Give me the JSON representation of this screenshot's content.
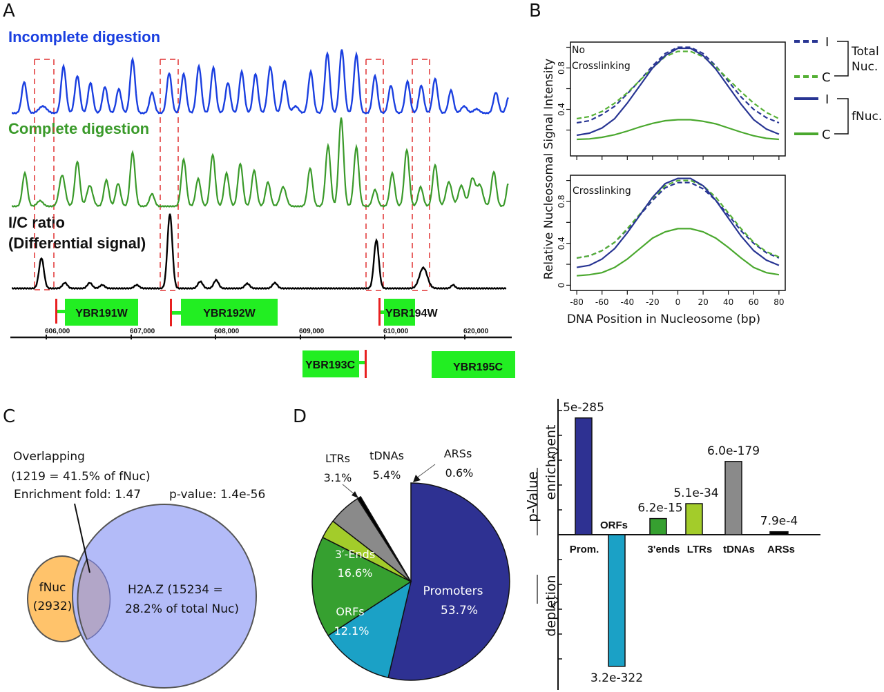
{
  "panels": {
    "A": "A",
    "B": "B",
    "C": "C",
    "D": "D"
  },
  "colors": {
    "incomplete": "#1a3fe0",
    "complete": "#3a9a2a",
    "ratio": "#000000",
    "dashed_box": "#e03030",
    "gene_box": "#22ee22",
    "tss_marker": "#e82020",
    "fnuc_I": "#283593",
    "total_I": "#283593",
    "total_C": "#55b035",
    "fnuc_C": "#4aa82e",
    "venn_fnuc": "#ffc36b",
    "venn_h2az": "#b3bbf8",
    "venn_overlap": "#b2a6c8",
    "promoters": "#2e3192",
    "orfs": "#1ba1c6",
    "three_ends": "#36a030",
    "ltrs": "#a3cc2a",
    "tdnas": "#8a8a8a",
    "arss": "#000000"
  },
  "panelA": {
    "track_labels": {
      "incomplete": "Incomplete digestion",
      "complete": "Complete digestion",
      "ratio_line1": "I/C ratio",
      "ratio_line2": "(Differential signal)"
    },
    "genes_top": [
      {
        "name": "YBR191W",
        "strand": "W"
      },
      {
        "name": "YBR192W",
        "strand": "W"
      },
      {
        "name": "YBR194W",
        "strand": "W"
      }
    ],
    "genes_bottom": [
      {
        "name": "YBR193C",
        "strand": "C"
      },
      {
        "name": "YBR195C",
        "strand": "C"
      }
    ],
    "axis_ticks": [
      "606,000",
      "607,000",
      "608,000",
      "609,000",
      "610,000",
      "620,000"
    ],
    "highlighted_regions": 4
  },
  "chart_data": [
    {
      "id": "B-top",
      "type": "line",
      "title": "No Crosslinking",
      "xlabel": "DNA Position in Nucleosome (bp)",
      "ylabel": "Relative Nucleosomal Signal Intensity",
      "x": [
        -80,
        -70,
        -60,
        -50,
        -40,
        -30,
        -20,
        -10,
        0,
        10,
        20,
        30,
        40,
        50,
        60,
        70,
        80
      ],
      "xlim": [
        -85,
        85
      ],
      "ylim": [
        -0.05,
        1.05
      ],
      "yticks": [
        0.2,
        0.4,
        0.6,
        0.8,
        1.0
      ],
      "ytick_labels": [
        "",
        "0.4",
        "",
        "0.8",
        ""
      ],
      "xticks": [
        -80,
        -60,
        -40,
        -20,
        0,
        20,
        40,
        60,
        80
      ],
      "series": [
        {
          "name": "Total Nuc. I",
          "style": "dashed",
          "color": "#283593",
          "values": [
            0.27,
            0.29,
            0.35,
            0.43,
            0.55,
            0.68,
            0.82,
            0.94,
            1.0,
            1.0,
            0.94,
            0.82,
            0.67,
            0.52,
            0.4,
            0.32,
            0.27
          ]
        },
        {
          "name": "Total Nuc. C",
          "style": "dashed",
          "color": "#55b035",
          "values": [
            0.31,
            0.33,
            0.38,
            0.46,
            0.56,
            0.68,
            0.8,
            0.91,
            0.96,
            0.96,
            0.91,
            0.81,
            0.69,
            0.57,
            0.46,
            0.37,
            0.31
          ]
        },
        {
          "name": "fNuc. I",
          "style": "solid",
          "color": "#283593",
          "values": [
            0.15,
            0.17,
            0.22,
            0.31,
            0.46,
            0.63,
            0.8,
            0.92,
            0.99,
            0.99,
            0.92,
            0.79,
            0.62,
            0.45,
            0.3,
            0.21,
            0.16
          ]
        },
        {
          "name": "fNuc. C",
          "style": "solid",
          "color": "#4aa82e",
          "values": [
            0.11,
            0.115,
            0.13,
            0.155,
            0.19,
            0.23,
            0.265,
            0.29,
            0.3,
            0.3,
            0.285,
            0.26,
            0.22,
            0.18,
            0.145,
            0.12,
            0.11
          ]
        }
      ]
    },
    {
      "id": "B-bottom",
      "type": "line",
      "title": "Crosslinking",
      "xlabel": "DNA Position in Nucleosome (bp)",
      "ylabel": "Relative Nucleosomal Signal Intensity",
      "x": [
        -80,
        -70,
        -60,
        -50,
        -40,
        -30,
        -20,
        -10,
        0,
        10,
        20,
        30,
        40,
        50,
        60,
        70,
        80
      ],
      "xlim": [
        -85,
        85
      ],
      "ylim": [
        -0.05,
        1.05
      ],
      "yticks": [
        0,
        0.2,
        0.4,
        0.6,
        0.8,
        1.0
      ],
      "ytick_labels": [
        "0",
        "",
        "0.4",
        "",
        "0.8",
        ""
      ],
      "xticks": [
        -80,
        -60,
        -40,
        -20,
        0,
        20,
        40,
        60,
        80
      ],
      "xtick_labels": [
        "-80",
        "-60",
        "-40",
        "-20",
        "0",
        "20",
        "40",
        "60",
        "80"
      ],
      "series": [
        {
          "name": "Total Nuc. I",
          "style": "dashed",
          "color": "#283593",
          "values": [
            0.26,
            0.28,
            0.33,
            0.41,
            0.53,
            0.67,
            0.81,
            0.93,
            0.98,
            0.98,
            0.92,
            0.81,
            0.67,
            0.52,
            0.4,
            0.31,
            0.26
          ]
        },
        {
          "name": "Total Nuc. C",
          "style": "dashed",
          "color": "#55b035",
          "values": [
            0.26,
            0.28,
            0.33,
            0.41,
            0.54,
            0.68,
            0.83,
            0.95,
            1.0,
            1.0,
            0.95,
            0.84,
            0.69,
            0.54,
            0.41,
            0.32,
            0.27
          ]
        },
        {
          "name": "fNuc. I",
          "style": "solid",
          "color": "#283593",
          "values": [
            0.17,
            0.19,
            0.25,
            0.35,
            0.5,
            0.67,
            0.84,
            0.97,
            1.02,
            1.02,
            0.95,
            0.81,
            0.64,
            0.47,
            0.33,
            0.24,
            0.19
          ]
        },
        {
          "name": "fNuc. C",
          "style": "solid",
          "color": "#4aa82e",
          "values": [
            0.09,
            0.1,
            0.12,
            0.17,
            0.25,
            0.35,
            0.45,
            0.51,
            0.54,
            0.54,
            0.51,
            0.45,
            0.36,
            0.26,
            0.17,
            0.12,
            0.1
          ]
        }
      ]
    },
    {
      "id": "D-pie",
      "type": "pie",
      "slices": [
        {
          "label": "Promoters",
          "pct_label": "53.7%",
          "value": 53.7,
          "color": "#2e3192"
        },
        {
          "label": "ORFs",
          "pct_label": "12.1%",
          "value": 12.1,
          "color": "#1ba1c6"
        },
        {
          "label": "3′-Ends",
          "pct_label": "16.6%",
          "value": 16.6,
          "color": "#36a030"
        },
        {
          "label": "LTRs",
          "pct_label": "3.1%",
          "value": 3.1,
          "color": "#a3cc2a"
        },
        {
          "label": "tDNAs",
          "pct_label": "5.4%",
          "value": 5.4,
          "color": "#8a8a8a"
        },
        {
          "label": "ARSs",
          "pct_label": "0.6%",
          "value": 0.6,
          "color": "#000000"
        }
      ]
    },
    {
      "id": "D-bar",
      "type": "bar",
      "ylabel": "p-Value",
      "ylabel_up": "enrichment",
      "ylabel_down": "depletion",
      "axis_break": true,
      "categories": [
        "Prom.",
        "ORFs",
        "3'ends",
        "LTRs",
        "tDNAs",
        "ARSs"
      ],
      "pvalue_labels": [
        "5e-285",
        "3.2e-322",
        "6.2e-15",
        "5.1e-34",
        "6.0e-179",
        "7.9e-4"
      ],
      "relative_heights": [
        4.7,
        -5.3,
        0.65,
        1.25,
        2.95,
        0.12
      ],
      "colors": [
        "#2e3192",
        "#1ba1c6",
        "#36a030",
        "#a3cc2a",
        "#8a8a8a",
        "#000000"
      ],
      "ylim": [
        -5.6,
        5.6
      ]
    }
  ],
  "panelC": {
    "overlap_line1": "Overlapping",
    "overlap_line2": "(1219 = 41.5% of fNuc)",
    "enrichment": "Enrichment fold: 1.47",
    "pvalue": "p-value: 1.4e-56",
    "fnuc_label": "fNuc",
    "fnuc_count": "(2932)",
    "h2az_line1": "H2A.Z (15234 =",
    "h2az_line2": "28.2% of total Nuc)"
  },
  "legendB": {
    "I": "I",
    "C": "C",
    "total_nuc_1": "Total",
    "total_nuc_2": "Nuc.",
    "fnuc": "fNuc."
  }
}
